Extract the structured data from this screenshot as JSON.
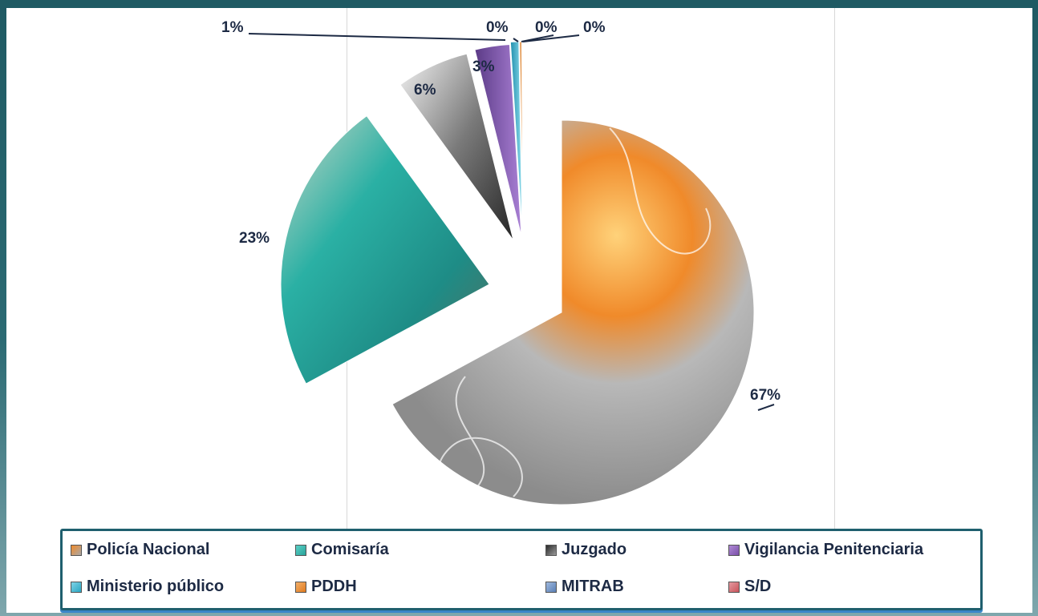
{
  "chart_data": {
    "type": "pie",
    "exploded": true,
    "legend_position": "bottom",
    "slices": [
      {
        "label": "Policía Nacional",
        "value": 67,
        "display": "67%",
        "color": "#a9a9a9",
        "accent": "#f08a2a"
      },
      {
        "label": "Comisaría",
        "value": 23,
        "display": "23%",
        "color": "#2aa39a",
        "accent": "#5ad0c6"
      },
      {
        "label": "Juzgado",
        "value": 6,
        "display": "6%",
        "color": "#9a9a9a",
        "accent": "#2a2a2a"
      },
      {
        "label": "Vigilancia Penitenciaria",
        "value": 3,
        "display": "3%",
        "color": "#7a4fa8",
        "accent": "#b08ad6"
      },
      {
        "label": "Ministerio público",
        "value": 1,
        "display": "1%",
        "color": "#2aa6c2",
        "accent": "#7ed3e6"
      },
      {
        "label": "PDDH",
        "value": 0,
        "display": "0%",
        "color": "#e07a1e",
        "accent": "#f3b06a"
      },
      {
        "label": "MITRAB",
        "value": 0,
        "display": "0%",
        "color": "#5a7fb5",
        "accent": "#9fb9de"
      },
      {
        "label": "S/D",
        "value": 0,
        "display": "0%",
        "color": "#c9535a",
        "accent": "#e39aa0"
      }
    ]
  }
}
